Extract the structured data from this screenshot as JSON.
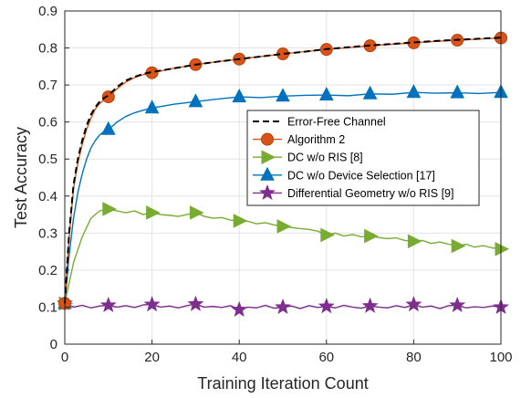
{
  "chart_data": {
    "type": "line",
    "xlabel": "Training Iteration Count",
    "ylabel": "Test Accuracy",
    "xlim": [
      0,
      100
    ],
    "ylim": [
      0,
      0.9
    ],
    "xticks": [
      0,
      20,
      40,
      60,
      80,
      100
    ],
    "yticks": [
      0,
      0.1,
      0.2,
      0.3,
      0.4,
      0.5,
      0.6,
      0.7,
      0.8,
      0.9
    ],
    "grid": true,
    "legend_position": "right",
    "series": [
      {
        "name": "Error-Free Channel",
        "color": "#000000",
        "marker": "none",
        "dash": true,
        "x": [
          0,
          1,
          2,
          3,
          4,
          5,
          6,
          7,
          8,
          9,
          10,
          12,
          14,
          16,
          18,
          20,
          25,
          30,
          35,
          40,
          45,
          50,
          55,
          60,
          65,
          70,
          75,
          80,
          85,
          90,
          95,
          100
        ],
        "y": [
          0.11,
          0.3,
          0.43,
          0.5,
          0.55,
          0.59,
          0.62,
          0.64,
          0.655,
          0.665,
          0.672,
          0.695,
          0.712,
          0.722,
          0.73,
          0.735,
          0.745,
          0.755,
          0.763,
          0.77,
          0.777,
          0.784,
          0.79,
          0.797,
          0.802,
          0.807,
          0.811,
          0.815,
          0.819,
          0.822,
          0.825,
          0.828
        ]
      },
      {
        "name": "Algorithm 2",
        "color": "#d95319",
        "marker": "circle",
        "dash": false,
        "x": [
          0,
          1,
          2,
          3,
          4,
          5,
          6,
          7,
          8,
          9,
          10,
          12,
          14,
          16,
          18,
          20,
          25,
          30,
          35,
          40,
          45,
          50,
          55,
          60,
          65,
          70,
          75,
          80,
          85,
          90,
          95,
          100
        ],
        "y": [
          0.11,
          0.29,
          0.42,
          0.49,
          0.54,
          0.58,
          0.61,
          0.635,
          0.65,
          0.66,
          0.668,
          0.69,
          0.708,
          0.72,
          0.728,
          0.733,
          0.745,
          0.755,
          0.763,
          0.77,
          0.777,
          0.784,
          0.79,
          0.796,
          0.801,
          0.806,
          0.81,
          0.814,
          0.818,
          0.821,
          0.824,
          0.827
        ],
        "markers_x": [
          0,
          10,
          20,
          30,
          40,
          50,
          60,
          70,
          80,
          90,
          100
        ],
        "markers_y": [
          0.11,
          0.668,
          0.733,
          0.755,
          0.77,
          0.784,
          0.796,
          0.806,
          0.814,
          0.821,
          0.827
        ]
      },
      {
        "name": "DC w/o RIS [8]",
        "color": "#77ac30",
        "marker": "triangle-right",
        "dash": false,
        "x": [
          0,
          2,
          4,
          6,
          8,
          10,
          12,
          14,
          16,
          18,
          20,
          22,
          24,
          26,
          28,
          30,
          32,
          34,
          36,
          38,
          40,
          42,
          44,
          46,
          48,
          50,
          52,
          54,
          56,
          58,
          60,
          62,
          64,
          66,
          68,
          70,
          72,
          74,
          76,
          78,
          80,
          82,
          84,
          86,
          88,
          90,
          92,
          94,
          96,
          98,
          100
        ],
        "y": [
          0.11,
          0.22,
          0.29,
          0.34,
          0.36,
          0.365,
          0.36,
          0.355,
          0.36,
          0.35,
          0.355,
          0.35,
          0.348,
          0.345,
          0.35,
          0.355,
          0.345,
          0.34,
          0.342,
          0.335,
          0.333,
          0.332,
          0.325,
          0.328,
          0.322,
          0.318,
          0.315,
          0.312,
          0.31,
          0.305,
          0.295,
          0.3,
          0.292,
          0.296,
          0.29,
          0.292,
          0.288,
          0.285,
          0.287,
          0.28,
          0.278,
          0.28,
          0.272,
          0.276,
          0.27,
          0.265,
          0.27,
          0.262,
          0.266,
          0.26,
          0.257
        ],
        "markers_x": [
          0,
          10,
          20,
          30,
          40,
          50,
          60,
          70,
          80,
          90,
          100
        ],
        "markers_y": [
          0.11,
          0.365,
          0.355,
          0.355,
          0.333,
          0.318,
          0.295,
          0.292,
          0.278,
          0.265,
          0.257
        ]
      },
      {
        "name": "DC w/o Device Selection [17]",
        "color": "#0072bd",
        "marker": "triangle-up",
        "dash": false,
        "x": [
          0,
          1,
          2,
          3,
          4,
          5,
          6,
          7,
          8,
          9,
          10,
          12,
          14,
          16,
          18,
          20,
          25,
          30,
          35,
          40,
          45,
          50,
          55,
          60,
          65,
          70,
          75,
          80,
          85,
          90,
          95,
          100
        ],
        "y": [
          0.11,
          0.24,
          0.34,
          0.41,
          0.46,
          0.5,
          0.53,
          0.55,
          0.565,
          0.575,
          0.58,
          0.6,
          0.615,
          0.625,
          0.632,
          0.638,
          0.648,
          0.655,
          0.662,
          0.668,
          0.666,
          0.67,
          0.672,
          0.673,
          0.671,
          0.676,
          0.675,
          0.68,
          0.678,
          0.679,
          0.677,
          0.68
        ],
        "markers_x": [
          0,
          10,
          20,
          30,
          40,
          50,
          60,
          70,
          80,
          90,
          100
        ],
        "markers_y": [
          0.11,
          0.58,
          0.638,
          0.655,
          0.668,
          0.67,
          0.673,
          0.676,
          0.68,
          0.679,
          0.68
        ]
      },
      {
        "name": "Differential Geometry w/o RIS [9]",
        "color": "#7e2f8e",
        "marker": "star",
        "dash": false,
        "x": [
          0,
          2,
          4,
          6,
          8,
          10,
          12,
          14,
          16,
          18,
          20,
          22,
          24,
          26,
          28,
          30,
          32,
          34,
          36,
          38,
          40,
          42,
          44,
          46,
          48,
          50,
          52,
          54,
          56,
          58,
          60,
          62,
          64,
          66,
          68,
          70,
          72,
          74,
          76,
          78,
          80,
          82,
          84,
          86,
          88,
          90,
          92,
          94,
          96,
          98,
          100
        ],
        "y": [
          0.11,
          0.1,
          0.105,
          0.098,
          0.103,
          0.105,
          0.1,
          0.104,
          0.099,
          0.106,
          0.107,
          0.1,
          0.103,
          0.098,
          0.104,
          0.108,
          0.1,
          0.102,
          0.099,
          0.104,
          0.093,
          0.1,
          0.098,
          0.105,
          0.097,
          0.1,
          0.103,
          0.096,
          0.104,
          0.099,
          0.102,
          0.098,
          0.105,
          0.1,
          0.097,
          0.103,
          0.1,
          0.098,
          0.104,
          0.099,
          0.107,
          0.1,
          0.103,
          0.096,
          0.104,
          0.105,
          0.098,
          0.101,
          0.099,
          0.103,
          0.1
        ],
        "markers_x": [
          0,
          10,
          20,
          30,
          40,
          50,
          60,
          70,
          80,
          90,
          100
        ],
        "markers_y": [
          0.11,
          0.105,
          0.107,
          0.108,
          0.093,
          0.1,
          0.102,
          0.103,
          0.107,
          0.105,
          0.1
        ]
      }
    ]
  }
}
